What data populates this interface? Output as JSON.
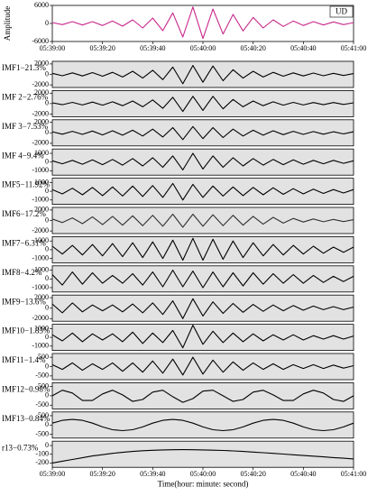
{
  "chart_data": [
    {
      "type": "line",
      "title": "UD",
      "ylabel": "Amplitude",
      "color": "#c8288a",
      "background": "#ffffff",
      "x": [
        0,
        4,
        8,
        12,
        16,
        20,
        24,
        28,
        32,
        36,
        40,
        44,
        48,
        52,
        56,
        60,
        64,
        68,
        72,
        76,
        80,
        84,
        88,
        92,
        96,
        100,
        104,
        108,
        112,
        116,
        120
      ],
      "values": [
        300,
        -400,
        600,
        -500,
        600,
        -700,
        800,
        -900,
        1200,
        -1500,
        1800,
        -2400,
        3500,
        -4500,
        5500,
        -5000,
        4800,
        -3500,
        3000,
        -2500,
        2000,
        -1500,
        1200,
        -1000,
        800,
        -700,
        600,
        -500,
        500,
        -400,
        300
      ],
      "xlim": [
        0,
        120
      ],
      "ylim": [
        -6000,
        6000
      ],
      "yticks": [
        6000,
        0,
        -6000
      ],
      "xticks": [
        {
          "value": 0,
          "label": "05:39:00"
        },
        {
          "value": 20,
          "label": "05:39:20"
        },
        {
          "value": 40,
          "label": "05:39:40"
        },
        {
          "value": 60,
          "label": "05:40:00"
        },
        {
          "value": 80,
          "label": "05:40:20"
        },
        {
          "value": 100,
          "label": "05:40:40"
        },
        {
          "value": 120,
          "label": "05:41:00"
        }
      ],
      "xlabel": "Time(hour: minute: second)"
    },
    {
      "type": "line",
      "label": "IMF1−21.3%",
      "color": "#000000",
      "background": "#e2e2e2",
      "x": [
        0,
        4,
        8,
        12,
        16,
        20,
        24,
        28,
        32,
        36,
        40,
        44,
        48,
        52,
        56,
        60,
        64,
        68,
        72,
        76,
        80,
        84,
        88,
        92,
        96,
        100,
        104,
        108,
        112,
        116,
        120
      ],
      "values": [
        200,
        -250,
        300,
        -300,
        350,
        -350,
        400,
        -500,
        600,
        -700,
        800,
        -1000,
        1400,
        -1800,
        1700,
        -1500,
        1600,
        -1200,
        900,
        -700,
        600,
        -500,
        400,
        -350,
        300,
        -300,
        250,
        -250,
        200,
        -200,
        150
      ],
      "xlim": [
        0,
        120
      ],
      "ylim": [
        -2500,
        2500
      ],
      "yticks": [
        2000,
        0,
        -2000
      ]
    },
    {
      "type": "line",
      "label": "IMF 2−2.76%",
      "color": "#000000",
      "background": "#e2e2e2",
      "x": [
        0,
        4,
        8,
        12,
        16,
        20,
        24,
        28,
        32,
        36,
        40,
        44,
        48,
        52,
        56,
        60,
        64,
        68,
        72,
        76,
        80,
        84,
        88,
        92,
        96,
        100,
        104,
        108,
        112,
        116,
        120
      ],
      "values": [
        150,
        -200,
        250,
        -250,
        300,
        -300,
        350,
        -400,
        500,
        -600,
        700,
        -900,
        1200,
        -1500,
        1400,
        -1300,
        1400,
        -1000,
        800,
        -600,
        500,
        -400,
        350,
        -300,
        250,
        -250,
        200,
        -200,
        200,
        -150,
        150
      ],
      "xlim": [
        0,
        120
      ],
      "ylim": [
        -2500,
        2500
      ],
      "yticks": [
        2000,
        0,
        -2000
      ]
    },
    {
      "type": "line",
      "label": "IMF 3−7.53%",
      "color": "#000000",
      "background": "#e2e2e2",
      "x": [
        0,
        4,
        8,
        12,
        16,
        20,
        24,
        28,
        32,
        36,
        40,
        44,
        48,
        52,
        56,
        60,
        64,
        68,
        72,
        76,
        80,
        84,
        88,
        92,
        96,
        100,
        104,
        108,
        112,
        116,
        120
      ],
      "values": [
        200,
        -250,
        300,
        -300,
        350,
        -400,
        400,
        -450,
        500,
        -600,
        700,
        -800,
        1000,
        -1300,
        1200,
        -1100,
        1000,
        -900,
        700,
        -600,
        500,
        -450,
        400,
        -350,
        300,
        -300,
        250,
        -250,
        200,
        -200,
        200
      ],
      "xlim": [
        0,
        120
      ],
      "ylim": [
        -2500,
        2500
      ],
      "yticks": [
        2000,
        0,
        -2000
      ]
    },
    {
      "type": "line",
      "label": "IMF 4−9.4%",
      "color": "#000000",
      "background": "#e2e2e2",
      "x": [
        0,
        4,
        8,
        12,
        16,
        20,
        24,
        28,
        32,
        36,
        40,
        44,
        48,
        52,
        56,
        60,
        64,
        68,
        72,
        76,
        80,
        84,
        88,
        92,
        96,
        100,
        104,
        108,
        112,
        116,
        120
      ],
      "values": [
        150,
        -200,
        200,
        -250,
        250,
        -300,
        300,
        -350,
        400,
        -450,
        500,
        -600,
        700,
        -900,
        1000,
        -800,
        700,
        -600,
        500,
        -450,
        400,
        -350,
        300,
        -300,
        250,
        -250,
        200,
        -200,
        200,
        -150,
        150
      ],
      "xlim": [
        0,
        120
      ],
      "ylim": [
        -1500,
        1500
      ],
      "yticks": [
        1000,
        0,
        -1000
      ]
    },
    {
      "type": "line",
      "label": "IMF5−11.92%",
      "color": "#000000",
      "background": "#e2e2e2",
      "x": [
        0,
        4,
        8,
        12,
        16,
        20,
        24,
        28,
        32,
        36,
        40,
        44,
        48,
        52,
        56,
        60,
        64,
        68,
        72,
        76,
        80,
        84,
        88,
        92,
        96,
        100,
        104,
        108,
        112,
        116,
        120
      ],
      "values": [
        200,
        -300,
        350,
        -400,
        450,
        -500,
        500,
        -550,
        600,
        -600,
        650,
        -700,
        900,
        -1000,
        800,
        -700,
        600,
        -550,
        500,
        -500,
        450,
        -400,
        400,
        -350,
        300,
        -300,
        250,
        -250,
        200,
        -200,
        200
      ],
      "xlim": [
        0,
        120
      ],
      "ylim": [
        -1500,
        1500
      ],
      "yticks": [
        1000,
        0,
        -1000
      ]
    },
    {
      "type": "line",
      "label": "IMF6−17.2%",
      "color": "#333333",
      "background": "#e2e2e2",
      "x": [
        0,
        4,
        8,
        12,
        16,
        20,
        24,
        28,
        32,
        36,
        40,
        44,
        48,
        52,
        56,
        60,
        64,
        68,
        72,
        76,
        80,
        84,
        88,
        92,
        96,
        100,
        104,
        108,
        112,
        116,
        120
      ],
      "values": [
        300,
        -400,
        500,
        -600,
        700,
        -800,
        800,
        -900,
        900,
        -1000,
        1000,
        -1100,
        1200,
        -1300,
        1200,
        -1100,
        1100,
        -1000,
        1000,
        -900,
        800,
        -700,
        600,
        -500,
        400,
        -300,
        300,
        -250,
        200,
        -200,
        150
      ],
      "xlim": [
        0,
        120
      ],
      "ylim": [
        -2500,
        2500
      ],
      "yticks": [
        2000,
        0,
        -2000
      ]
    },
    {
      "type": "line",
      "label": "IMF7−6.31%",
      "color": "#000000",
      "background": "#e2e2e2",
      "x": [
        0,
        4,
        8,
        12,
        16,
        20,
        24,
        28,
        32,
        36,
        40,
        44,
        48,
        52,
        56,
        60,
        64,
        68,
        72,
        76,
        80,
        84,
        88,
        92,
        96,
        100,
        104,
        108,
        112,
        116,
        120
      ],
      "values": [
        400,
        -500,
        500,
        -600,
        600,
        -700,
        700,
        -800,
        800,
        -900,
        900,
        -1000,
        1100,
        -1200,
        1300,
        -1200,
        1200,
        -1100,
        1000,
        -900,
        800,
        -700,
        600,
        -600,
        500,
        -500,
        400,
        -400,
        300,
        -300,
        300
      ],
      "xlim": [
        0,
        120
      ],
      "ylim": [
        -1500,
        1500
      ],
      "yticks": [
        1000,
        0,
        -1000
      ]
    },
    {
      "type": "line",
      "label": "IMF8−4.2%",
      "color": "#000000",
      "background": "#e2e2e2",
      "x": [
        0,
        4,
        8,
        12,
        16,
        20,
        24,
        28,
        32,
        36,
        40,
        44,
        48,
        52,
        56,
        60,
        64,
        68,
        72,
        76,
        80,
        84,
        88,
        92,
        96,
        100,
        104,
        108,
        112,
        116,
        120
      ],
      "values": [
        500,
        -700,
        800,
        -600,
        700,
        -500,
        400,
        -500,
        600,
        -700,
        800,
        -900,
        1000,
        -900,
        900,
        -1000,
        800,
        -900,
        700,
        -800,
        700,
        -600,
        600,
        -500,
        500,
        -500,
        400,
        -400,
        300,
        -300,
        300
      ],
      "xlim": [
        0,
        120
      ],
      "ylim": [
        -1500,
        1500
      ],
      "yticks": [
        1000,
        0,
        -1000
      ]
    },
    {
      "type": "line",
      "label": "IMF9−13.6%",
      "color": "#000000",
      "background": "#e2e2e2",
      "x": [
        0,
        4,
        8,
        12,
        16,
        20,
        24,
        28,
        32,
        36,
        40,
        44,
        48,
        52,
        56,
        60,
        64,
        68,
        72,
        76,
        80,
        84,
        88,
        92,
        96,
        100,
        104,
        108,
        112,
        116,
        120
      ],
      "values": [
        800,
        -900,
        1000,
        -700,
        600,
        -500,
        600,
        -700,
        800,
        -900,
        1000,
        -1200,
        1400,
        -2000,
        1800,
        -1500,
        1200,
        -1000,
        900,
        -800,
        700,
        -600,
        600,
        -500,
        500,
        -400,
        400,
        -300,
        300,
        -300,
        200
      ],
      "xlim": [
        0,
        120
      ],
      "ylim": [
        -2500,
        2500
      ],
      "yticks": [
        2000,
        0,
        -2000
      ]
    },
    {
      "type": "line",
      "label": "IMF10−1.83%",
      "color": "#000000",
      "background": "#e2e2e2",
      "x": [
        0,
        4,
        8,
        12,
        16,
        20,
        24,
        28,
        32,
        36,
        40,
        44,
        48,
        52,
        56,
        60,
        64,
        68,
        72,
        76,
        80,
        84,
        88,
        92,
        96,
        100,
        104,
        108,
        112,
        116,
        120
      ],
      "values": [
        300,
        -400,
        500,
        -500,
        400,
        -300,
        400,
        -500,
        600,
        -700,
        500,
        -600,
        800,
        -1200,
        1400,
        -800,
        700,
        -600,
        500,
        -500,
        400,
        -400,
        300,
        -300,
        300,
        -300,
        200,
        -200,
        200,
        -200,
        150
      ],
      "xlim": [
        0,
        120
      ],
      "ylim": [
        -1500,
        1500
      ],
      "yticks": [
        1000,
        0,
        -1000
      ]
    },
    {
      "type": "line",
      "label": "IMF11−1.4%",
      "color": "#000000",
      "background": "#e2e2e2",
      "x": [
        0,
        4,
        8,
        12,
        16,
        20,
        24,
        28,
        32,
        36,
        40,
        44,
        48,
        52,
        56,
        60,
        64,
        68,
        72,
        76,
        80,
        84,
        88,
        92,
        96,
        100,
        104,
        108,
        112,
        116,
        120
      ],
      "values": [
        100,
        -150,
        200,
        -200,
        150,
        -150,
        200,
        -250,
        200,
        -300,
        300,
        -350,
        400,
        -450,
        500,
        -400,
        350,
        -300,
        250,
        -200,
        200,
        -150,
        150,
        -150,
        100,
        -100,
        100,
        -100,
        80,
        -80,
        50
      ],
      "xlim": [
        0,
        120
      ],
      "ylim": [
        -700,
        700
      ],
      "yticks": [
        500,
        0,
        -500
      ]
    },
    {
      "type": "line",
      "label": "IMF12−0.98%",
      "color": "#000000",
      "background": "#e2e2e2",
      "x": [
        0,
        4,
        8,
        12,
        16,
        20,
        24,
        28,
        32,
        36,
        40,
        44,
        48,
        52,
        56,
        60,
        64,
        68,
        72,
        76,
        80,
        84,
        88,
        92,
        96,
        100,
        104,
        108,
        112,
        116,
        120
      ],
      "values": [
        0,
        300,
        150,
        -250,
        -250,
        100,
        300,
        50,
        -300,
        -200,
        200,
        300,
        -50,
        -350,
        -150,
        250,
        300,
        0,
        -300,
        -200,
        200,
        300,
        50,
        -250,
        -250,
        100,
        300,
        150,
        -200,
        -300,
        0
      ],
      "xlim": [
        0,
        120
      ],
      "ylim": [
        -700,
        700
      ],
      "yticks": [
        500,
        0,
        -500
      ]
    },
    {
      "type": "line",
      "label": "IMF13−0.84%",
      "color": "#000000",
      "background": "#e2e2e2",
      "x": [
        0,
        4,
        8,
        12,
        16,
        20,
        24,
        28,
        32,
        36,
        40,
        44,
        48,
        52,
        56,
        60,
        64,
        68,
        72,
        76,
        80,
        84,
        88,
        92,
        96,
        100,
        104,
        108,
        112,
        116,
        120
      ],
      "values": [
        100,
        250,
        300,
        250,
        100,
        -100,
        -250,
        -300,
        -250,
        -100,
        100,
        250,
        300,
        250,
        100,
        -100,
        -250,
        -300,
        -250,
        -100,
        100,
        250,
        300,
        250,
        100,
        -100,
        -250,
        -300,
        -250,
        -100,
        100
      ],
      "xlim": [
        0,
        120
      ],
      "ylim": [
        -700,
        700
      ],
      "yticks": [
        500,
        0,
        -500
      ]
    },
    {
      "type": "line",
      "label": "r13−0.73%",
      "color": "#000000",
      "background": "#e2e2e2",
      "x": [
        0,
        4,
        8,
        12,
        16,
        20,
        24,
        28,
        32,
        36,
        40,
        44,
        48,
        52,
        56,
        60,
        64,
        68,
        72,
        76,
        80,
        84,
        88,
        92,
        96,
        100,
        104,
        108,
        112,
        116,
        120
      ],
      "values": [
        -200,
        -180,
        -160,
        -140,
        -120,
        -105,
        -90,
        -78,
        -68,
        -60,
        -54,
        -50,
        -48,
        -47,
        -48,
        -50,
        -53,
        -57,
        -62,
        -68,
        -75,
        -82,
        -90,
        -98,
        -106,
        -114,
        -122,
        -130,
        -138,
        -146,
        -154
      ],
      "xlim": [
        0,
        120
      ],
      "ylim": [
        -250,
        50
      ],
      "yticks": [
        0,
        -100,
        -200
      ],
      "xticks": [
        {
          "value": 0,
          "label": "05:39:00"
        },
        {
          "value": 20,
          "label": "05:39:20"
        },
        {
          "value": 40,
          "label": "05:39:40"
        },
        {
          "value": 60,
          "label": "05:40:00"
        },
        {
          "value": 80,
          "label": "05:40:20"
        },
        {
          "value": 100,
          "label": "05:40:40"
        },
        {
          "value": 120,
          "label": "05:41:00"
        }
      ],
      "xlabel": "Time(hour: minute: second)"
    }
  ]
}
